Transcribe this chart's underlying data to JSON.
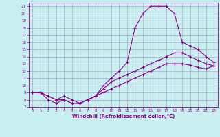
{
  "xlabel": "Windchill (Refroidissement éolien,°C)",
  "bg_color": "#c8eef0",
  "grid_color": "#aaaacc",
  "line_color": "#880088",
  "xlim": [
    -0.5,
    23.5
  ],
  "ylim": [
    7,
    21.5
  ],
  "xticks": [
    0,
    1,
    2,
    3,
    4,
    5,
    6,
    7,
    8,
    9,
    10,
    11,
    12,
    13,
    14,
    15,
    16,
    17,
    18,
    19,
    20,
    21,
    22,
    23
  ],
  "yticks": [
    7,
    8,
    9,
    10,
    11,
    12,
    13,
    14,
    15,
    16,
    17,
    18,
    19,
    20,
    21
  ],
  "line1_x": [
    0,
    1,
    2,
    3,
    4,
    5,
    6,
    7,
    8,
    9,
    10,
    11,
    12,
    13,
    14,
    15,
    16,
    17,
    18,
    19,
    20,
    21,
    22,
    23
  ],
  "line1_y": [
    9,
    9,
    8,
    7.5,
    8,
    7.5,
    7.5,
    8,
    8.5,
    10,
    11,
    12,
    13.2,
    18,
    20,
    21,
    21,
    21,
    20,
    16,
    15.5,
    15,
    14,
    13.2
  ],
  "line2_x": [
    0,
    1,
    3,
    4,
    5,
    6,
    7,
    8,
    9,
    10,
    11,
    12,
    13,
    14,
    15,
    16,
    17,
    18,
    19,
    20,
    21,
    22,
    23
  ],
  "line2_y": [
    9,
    9,
    8,
    8.5,
    8,
    7.5,
    8,
    8.5,
    9.5,
    10.5,
    11,
    11.5,
    12,
    12.5,
    13,
    13.5,
    14,
    14.5,
    14.5,
    14,
    13.5,
    13,
    12.7
  ],
  "line3_x": [
    0,
    1,
    2,
    3,
    4,
    5,
    6,
    7,
    8,
    9,
    10,
    11,
    12,
    13,
    14,
    15,
    16,
    17,
    18,
    19,
    20,
    21,
    22,
    23
  ],
  "line3_y": [
    9,
    9,
    8.5,
    8,
    8,
    7.5,
    7.5,
    8,
    8.5,
    9,
    9.5,
    10,
    10.5,
    11,
    11.5,
    12,
    12.5,
    13,
    13,
    13,
    12.8,
    12.5,
    12.3,
    12.7
  ]
}
